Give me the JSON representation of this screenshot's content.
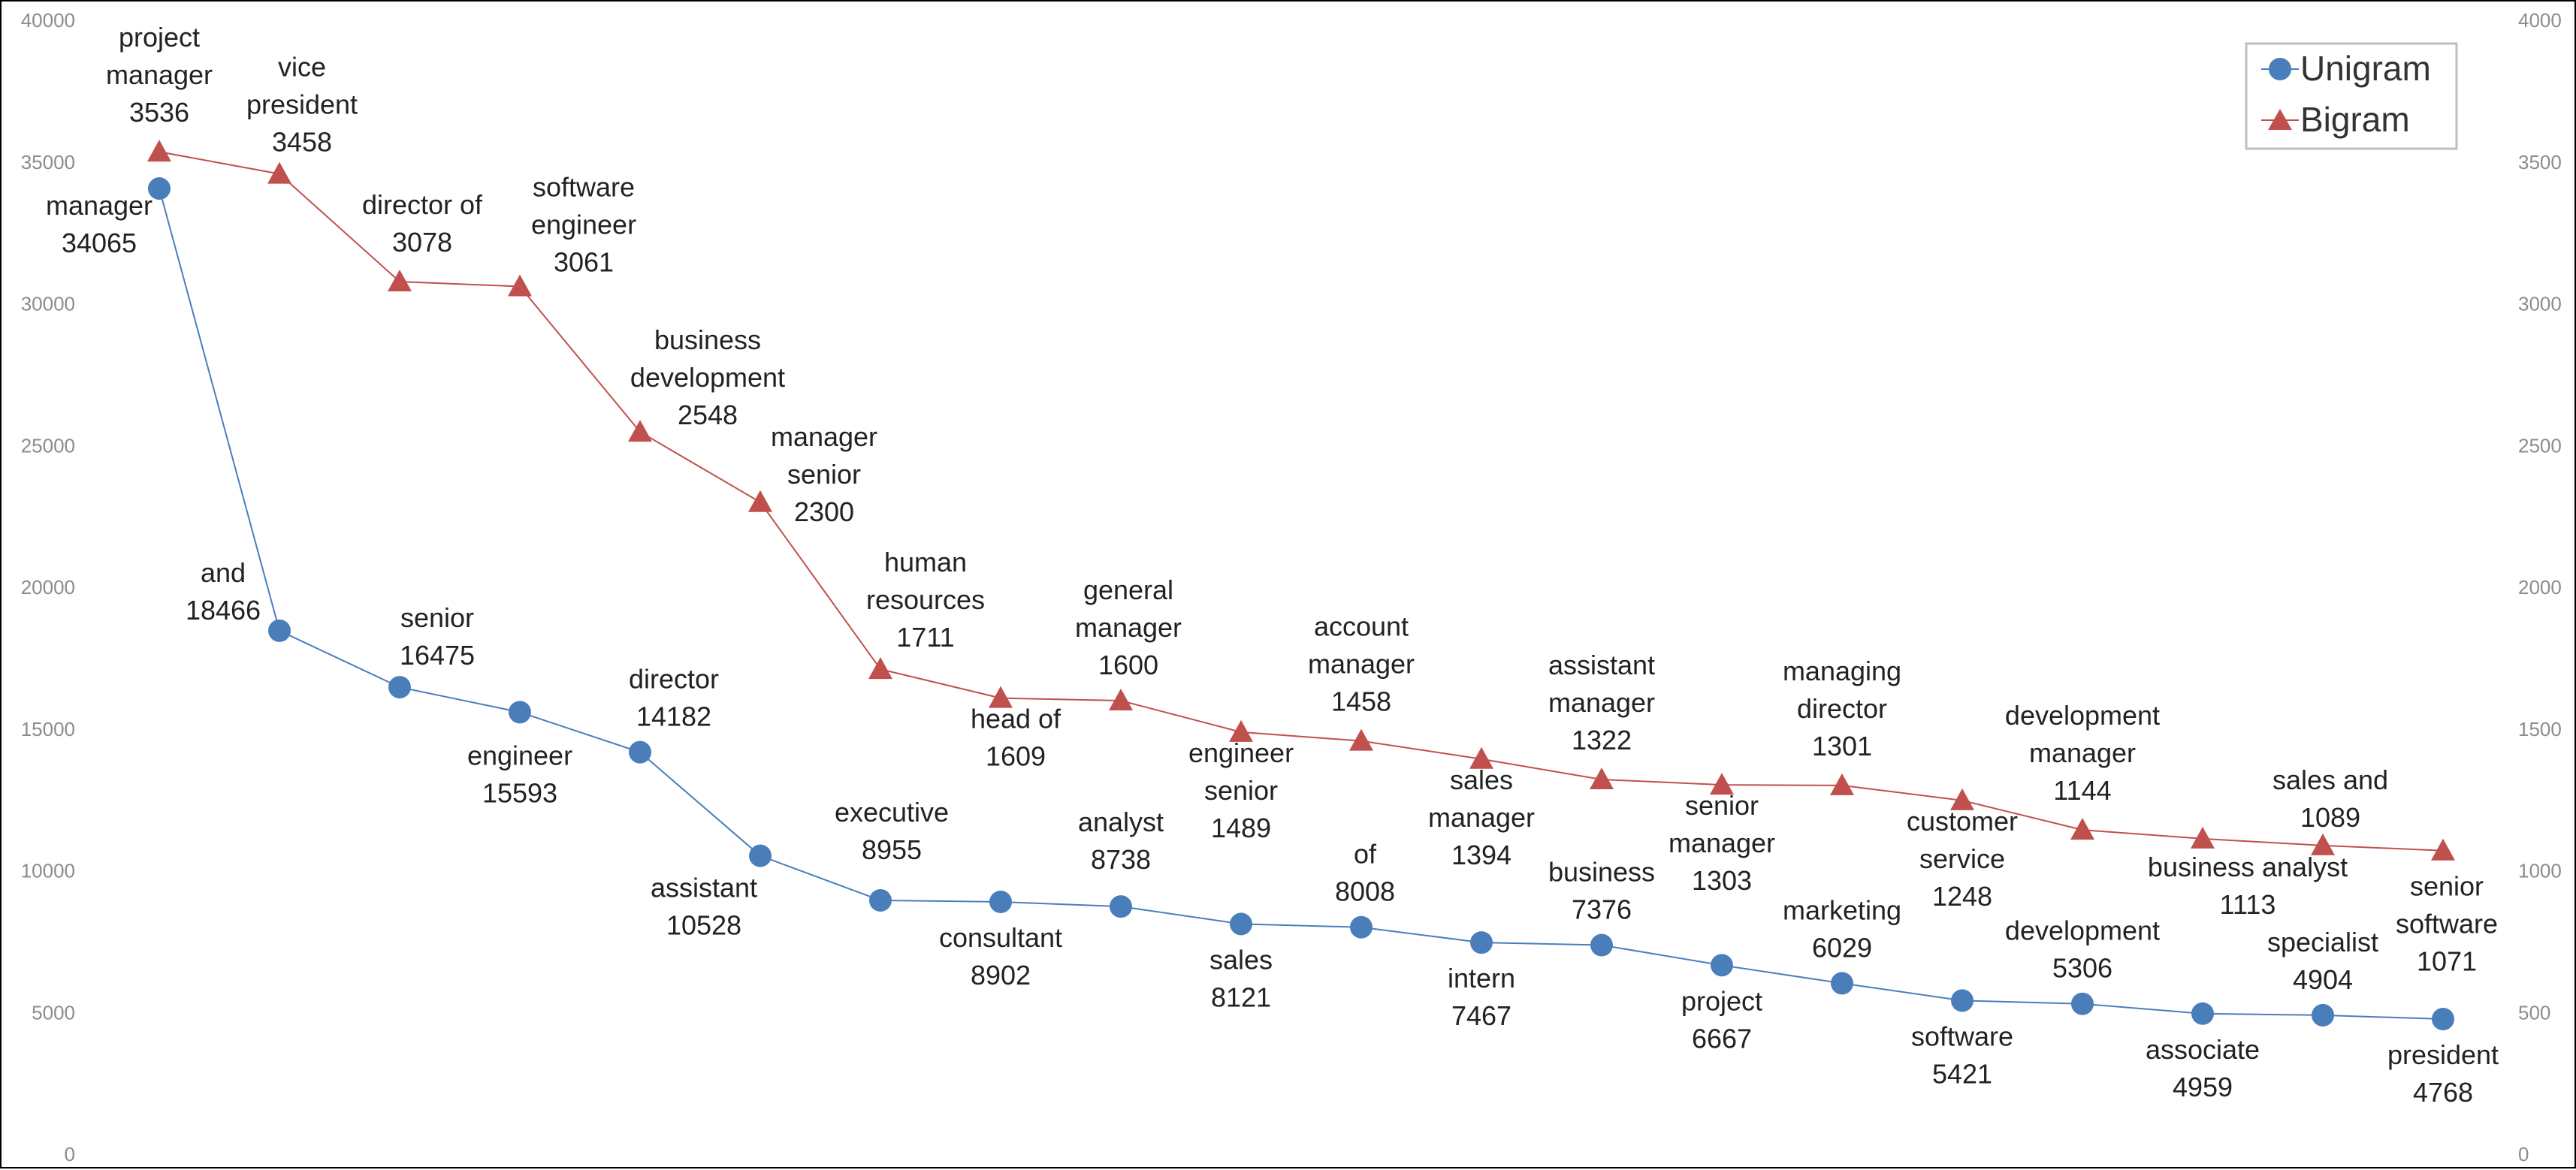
{
  "chart_data": {
    "type": "line",
    "title": "",
    "xlabel": "",
    "ylabel": "",
    "ylim": [
      0,
      40000
    ],
    "y2lim": [
      0,
      4000
    ],
    "y_ticks": [
      "0",
      "5000",
      "10000",
      "15000",
      "20000",
      "25000",
      "30000",
      "35000",
      "40000"
    ],
    "y2_ticks": [
      "0",
      "500",
      "1000",
      "1500",
      "2000",
      "2500",
      "3000",
      "3500",
      "4000"
    ],
    "grid": false,
    "legend_position": "top-right",
    "series": [
      {
        "name": "Unigram",
        "axis": "left",
        "color": "#4a7ebb",
        "marker": "circle",
        "labels": [
          "manager",
          "and",
          "senior",
          "engineer",
          "director",
          "assistant",
          "executive",
          "consultant",
          "analyst",
          "sales",
          "of",
          "intern",
          "business",
          "project",
          "marketing",
          "software",
          "development",
          "associate",
          "specialist",
          "president"
        ],
        "values": [
          34065,
          18466,
          16475,
          15593,
          14182,
          10528,
          8955,
          8902,
          8738,
          8121,
          8008,
          7467,
          7376,
          6667,
          6029,
          5421,
          5306,
          4959,
          4904,
          4768
        ]
      },
      {
        "name": "Bigram",
        "axis": "right",
        "color": "#c0504d",
        "marker": "triangle",
        "labels": [
          "project manager",
          "vice president",
          "director of",
          "software engineer",
          "business development",
          "manager senior",
          "human resources",
          "head of",
          "general manager",
          "engineer senior",
          "account manager",
          "sales manager",
          "assistant manager",
          "senior manager",
          "managing director",
          "customer service",
          "development manager",
          "business analyst",
          "sales and",
          "senior software"
        ],
        "values": [
          3536,
          3458,
          3078,
          3061,
          2548,
          2300,
          1711,
          1609,
          1600,
          1489,
          1458,
          1394,
          1322,
          1303,
          1301,
          1248,
          1144,
          1113,
          1089,
          1071
        ]
      }
    ]
  }
}
